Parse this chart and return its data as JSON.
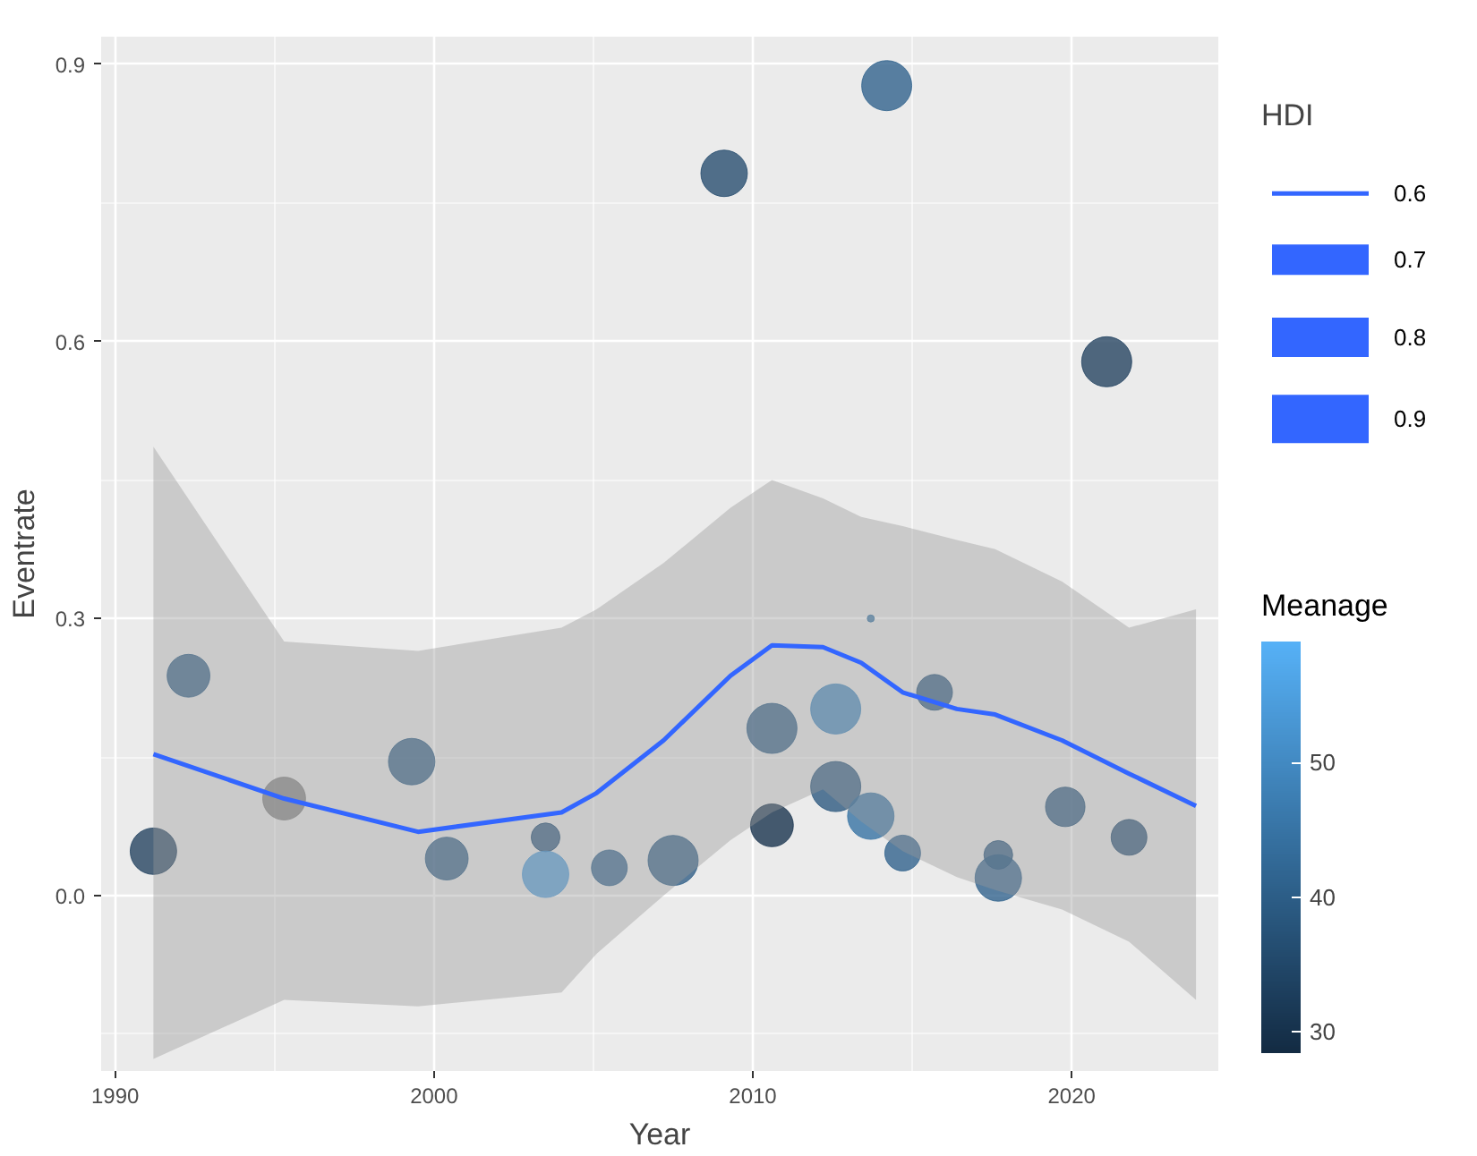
{
  "chart_data": {
    "type": "bubble",
    "xlabel": "Year",
    "ylabel": "Eventrate",
    "legend_title": "HDI",
    "clabel": "Meanage",
    "xlim": [
      1989.56,
      2024.6
    ],
    "ylim": [
      -0.19,
      0.93
    ],
    "xticks": [
      1990,
      2000,
      2010,
      2020
    ],
    "yticks": [
      {
        "value": 0,
        "label": "0.0"
      },
      {
        "value": 0.3,
        "label": "0.3"
      },
      {
        "value": 0.6,
        "label": "0.6"
      },
      {
        "value": 0.9,
        "label": "0.9"
      }
    ],
    "grid": true,
    "clim": [
      28.4,
      59
    ],
    "cticks": [
      30,
      40,
      50
    ],
    "annotations": [
      "0.6",
      "0.7",
      "0.8",
      "0.9"
    ],
    "series": [
      {
        "x": [
          1991.2,
          1992.3,
          1995.3,
          1999.3,
          2000.4,
          2003.5,
          2003.5,
          2005.5,
          2007.5,
          2010.6,
          2010.6,
          2012.6,
          2012.6,
          2013.7,
          2013.7,
          2014.7,
          2015.7,
          2017.7,
          2017.7,
          2019.8,
          2021.8,
          2009.1,
          2014.2,
          2021.1
        ],
        "values": [
          0.048,
          0.238,
          0.105,
          0.145,
          0.04,
          0.063,
          0.023,
          0.03,
          0.038,
          0.181,
          0.076,
          0.202,
          0.118,
          0.086,
          0.3,
          0.046,
          0.22,
          0.044,
          0.019,
          0.096,
          0.063,
          0.782,
          0.877,
          0.578
        ],
        "sizes": [
          0.86,
          0.73,
          0.73,
          0.86,
          0.73,
          0.33,
          0.86,
          0.51,
          1.0,
          1.0,
          0.73,
          1.0,
          1.0,
          0.86,
          0.02,
          0.51,
          0.51,
          0.33,
          0.86,
          0.62,
          0.51,
          0.86,
          1.0,
          1.0
        ],
        "cvalues": [
          33,
          40,
          null,
          40,
          40,
          37,
          54.1,
          40.7,
          40,
          40,
          29.7,
          50,
          38,
          45,
          45,
          40.7,
          38,
          38,
          40.7,
          38,
          36,
          35,
          40.7,
          33
        ],
        "colors": [
          "#21405e",
          "#2b5a83",
          "#7f7f7f",
          "#2b5a83",
          "#2b5a83",
          "#27527a",
          "#4b9ad8",
          "#2d5f8a",
          "#2b5a83",
          "#2b5a83",
          "#14304a",
          "#3f84bd",
          "#29567e",
          "#3270a2",
          "#3270a2",
          "#2d5f8a",
          "#29567e",
          "#29567e",
          "#2d5f8a",
          "#29567e",
          "#254e73",
          "#244a6d",
          "#2d5f8a",
          "#21405e"
        ]
      },
      {
        "type": "line",
        "color": "#3366ff",
        "x": [
          1991.2,
          1995.3,
          1999.5,
          2004.0,
          2005.1,
          2007.2,
          2009.3,
          2010.6,
          2012.2,
          2013.4,
          2014.7,
          2016.4,
          2017.6,
          2019.7,
          2021.8,
          2023.9
        ],
        "values": [
          0.153,
          0.105,
          0.069,
          0.09,
          0.111,
          0.168,
          0.238,
          0.271,
          0.269,
          0.252,
          0.22,
          0.202,
          0.196,
          0.168,
          0.132,
          0.097
        ],
        "lower": [
          -0.177,
          -0.113,
          -0.12,
          -0.105,
          -0.063,
          0.0,
          0.06,
          0.09,
          0.115,
          0.08,
          0.048,
          0.02,
          0.006,
          -0.015,
          -0.05,
          -0.113
        ],
        "upper": [
          0.486,
          0.275,
          0.265,
          0.29,
          0.31,
          0.36,
          0.42,
          0.45,
          0.43,
          0.41,
          0.4,
          0.385,
          0.375,
          0.34,
          0.29,
          0.31
        ]
      }
    ]
  }
}
